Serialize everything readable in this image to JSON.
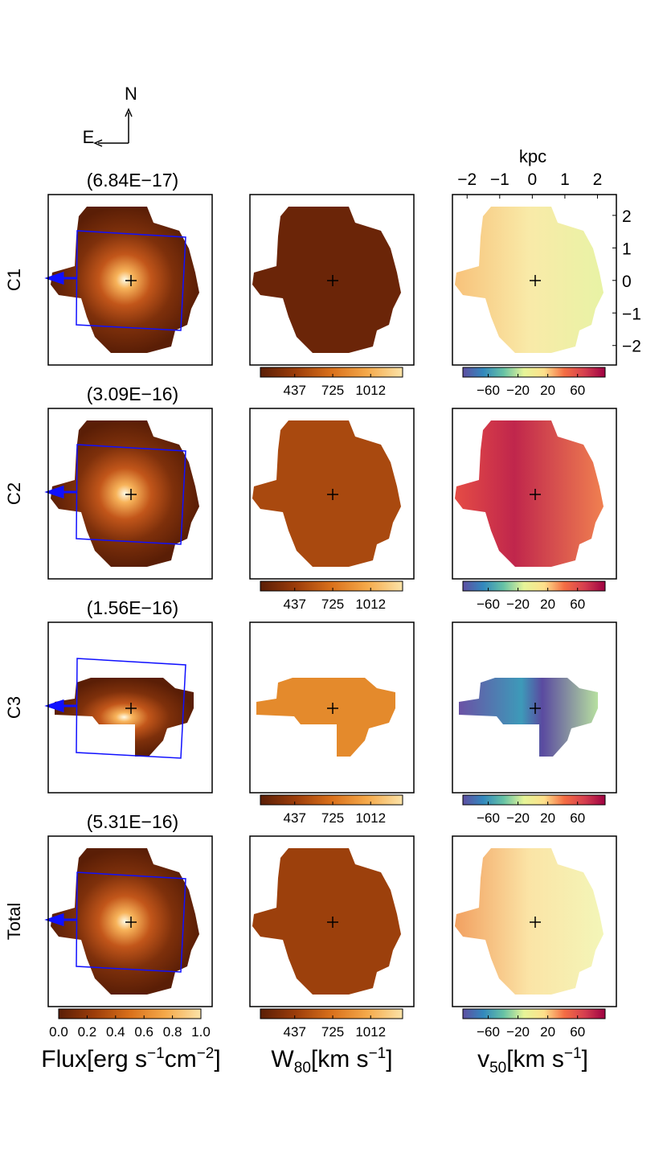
{
  "compass": {
    "north": "N",
    "east": "E"
  },
  "kpc_axis": {
    "label": "kpc",
    "xlim": [
      -2.45,
      2.58
    ],
    "xticks": [
      {
        "value": -2,
        "label": "−2"
      },
      {
        "value": -1,
        "label": "−1"
      },
      0,
      1,
      2
    ],
    "ylim": [
      -2.6,
      2.64
    ],
    "yticks": [
      2,
      1,
      0,
      {
        "value": -1,
        "label": "−1"
      },
      {
        "value": -2,
        "label": "−2"
      }
    ]
  },
  "rows": [
    {
      "label": "C1",
      "flux": "(6.84E−17)"
    },
    {
      "label": "C2",
      "flux": "(3.09E−16)"
    },
    {
      "label": "C3",
      "flux": "(1.56E−16)"
    },
    {
      "label": "Total",
      "flux": "(5.31E−16)"
    }
  ],
  "colorbars": [
    {
      "lim": [
        0,
        1
      ],
      "ticks": [
        {
          "value": 0,
          "label": "0.0"
        },
        {
          "value": 0.2,
          "label": "0.2"
        },
        {
          "value": 0.4,
          "label": "0.4"
        },
        {
          "value": 0.6,
          "label": "0.6"
        },
        {
          "value": 0.8,
          "label": "0.8"
        },
        {
          "value": 1,
          "label": "1.0"
        }
      ],
      "colors": [
        "#5a1e06",
        "#9c3d0a",
        "#d9701b",
        "#f5a94a",
        "#fbe3a8"
      ],
      "label": {
        "main": "Flux[erg s",
        "sup1": "−1",
        "mid": "cm",
        "sup2": "−2",
        "end": "]"
      }
    },
    {
      "lim": [
        177,
        1254
      ],
      "ticks": [
        437,
        725,
        1012
      ],
      "colors": [
        "#5a1e06",
        "#9c3d0a",
        "#d9701b",
        "#f5a94a",
        "#fbe3a8"
      ],
      "label": {
        "main": "W",
        "sub": "80",
        "end": "[km s",
        "sup1": "−1",
        "end2": "]"
      }
    },
    {
      "lim": [
        -94,
        97
      ],
      "ticks": [
        {
          "value": -60,
          "label": "−60"
        },
        {
          "value": -20,
          "label": "−20"
        },
        20,
        60
      ],
      "colors": [
        "#5e4fa2",
        "#3288bd",
        "#66c2a5",
        "#e6f598",
        "#fee08b",
        "#f46d43",
        "#d53e4f",
        "#9e0142"
      ],
      "label": {
        "main": "v",
        "sub": "50",
        "end": "[km s",
        "sup1": "−1",
        "end2": "]"
      }
    }
  ]
}
